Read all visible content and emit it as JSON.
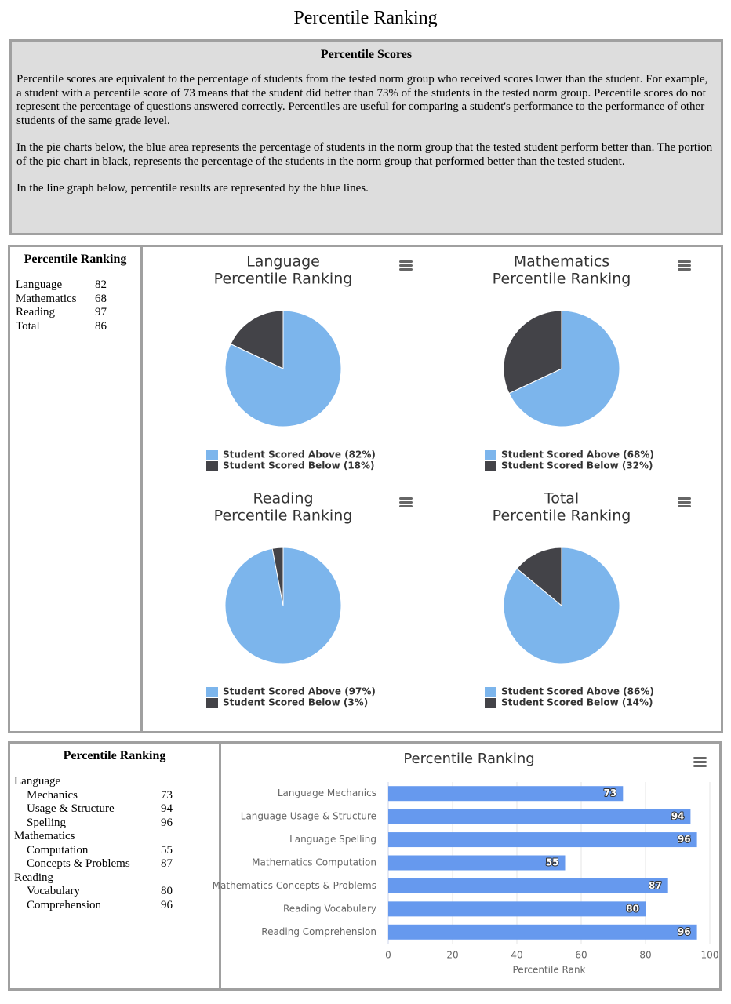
{
  "title": "Percentile Ranking",
  "info": {
    "heading": "Percentile Scores",
    "paragraphs": [
      "Percentile scores are equivalent to the percentage of students from the tested norm group who received scores lower than the student. For example, a student with a percentile score of 73 means that the student did better than 73% of the students in the tested norm group. Percentile scores do not represent the percentage of questions answered correctly. Percentiles are useful for comparing a student's performance to the performance of other students of the same grade level.",
      "In the pie charts below, the blue area represents the percentage of students in the norm group that the tested student perform better than. The portion of the pie chart in black, represents the percentage of the students in the norm group that performed better than the tested student.",
      "In the line graph below, percentile results are represented by the blue lines."
    ]
  },
  "summary": {
    "heading": "Percentile Ranking",
    "rows": [
      [
        "Language",
        82
      ],
      [
        "Mathematics",
        68
      ],
      [
        "Reading",
        97
      ],
      [
        "Total",
        86
      ]
    ]
  },
  "details": {
    "heading": "Percentile Ranking",
    "groups": [
      {
        "name": "Language",
        "rows": [
          [
            "Mechanics",
            73
          ],
          [
            "Usage & Structure",
            94
          ],
          [
            "Spelling",
            96
          ]
        ]
      },
      {
        "name": "Mathematics",
        "rows": [
          [
            "Computation",
            55
          ],
          [
            "Concepts & Problems",
            87
          ]
        ]
      },
      {
        "name": "Reading",
        "rows": [
          [
            "Vocabulary",
            80
          ],
          [
            "Comprehension",
            96
          ]
        ]
      }
    ]
  },
  "chart_data": [
    {
      "type": "pie",
      "title": [
        "Language",
        "Percentile Ranking"
      ],
      "categories": [
        "Student Scored Above (82%)",
        "Student Scored Below (18%)"
      ],
      "values": [
        82,
        18
      ],
      "colors": [
        "#7cb5ec",
        "#434348"
      ]
    },
    {
      "type": "pie",
      "title": [
        "Mathematics",
        "Percentile Ranking"
      ],
      "categories": [
        "Student Scored Above (68%)",
        "Student Scored Below (32%)"
      ],
      "values": [
        68,
        32
      ],
      "colors": [
        "#7cb5ec",
        "#434348"
      ]
    },
    {
      "type": "pie",
      "title": [
        "Reading",
        "Percentile Ranking"
      ],
      "categories": [
        "Student Scored Above (97%)",
        "Student Scored Below (3%)"
      ],
      "values": [
        97,
        3
      ],
      "colors": [
        "#7cb5ec",
        "#434348"
      ]
    },
    {
      "type": "pie",
      "title": [
        "Total",
        "Percentile Ranking"
      ],
      "categories": [
        "Student Scored Above (86%)",
        "Student Scored Below (14%)"
      ],
      "values": [
        86,
        14
      ],
      "colors": [
        "#7cb5ec",
        "#434348"
      ]
    },
    {
      "type": "bar",
      "title": "Percentile Ranking",
      "categories": [
        "Language Mechanics",
        "Language Usage & Structure",
        "Language Spelling",
        "Mathematics Computation",
        "Mathematics Concepts & Problems",
        "Reading Vocabulary",
        "Reading Comprehension"
      ],
      "values": [
        73,
        94,
        96,
        55,
        87,
        80,
        96
      ],
      "color": "#6699ee",
      "xlim": [
        0,
        100
      ],
      "xticks": [
        0,
        20,
        40,
        60,
        80,
        100
      ],
      "xlabel": "Percentile Rank",
      "grid": true
    }
  ]
}
